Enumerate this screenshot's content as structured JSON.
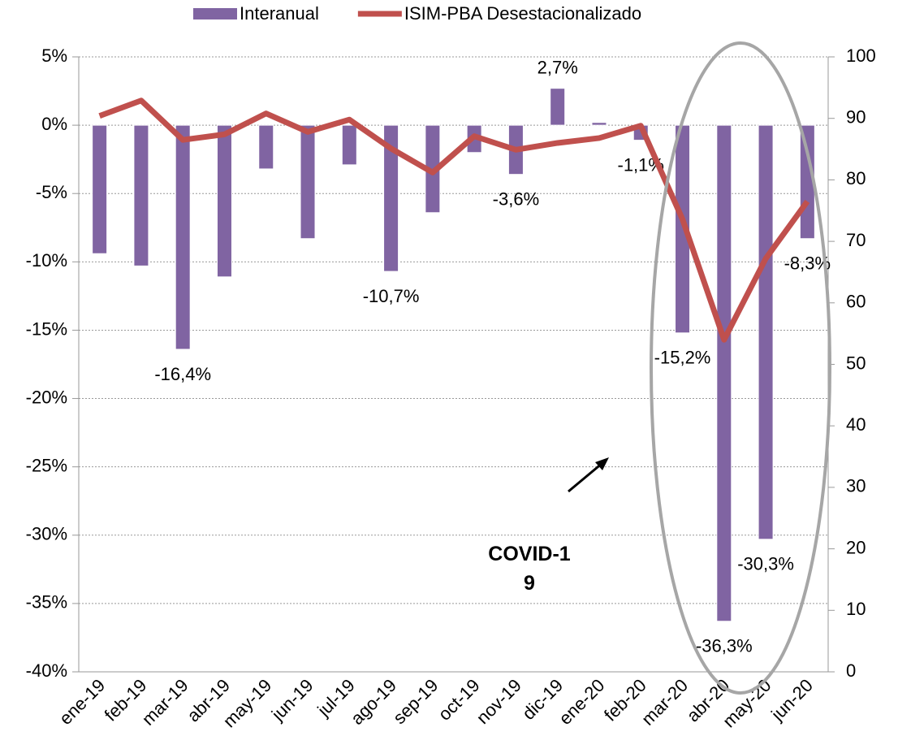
{
  "chart_data": {
    "type": "bar-line",
    "categories": [
      "ene-19",
      "feb-19",
      "mar-19",
      "abr-19",
      "may-19",
      "jun-19",
      "jul-19",
      "ago-19",
      "sep-19",
      "oct-19",
      "nov-19",
      "dic-19",
      "ene-20",
      "feb-20",
      "mar-20",
      "abr-20",
      "may-20",
      "jun-20"
    ],
    "series": [
      {
        "name": "Interanual",
        "type": "bar",
        "color": "#8064a2",
        "axis": "y",
        "values": [
          -9.4,
          -10.3,
          -16.4,
          -11.1,
          -3.2,
          -8.3,
          -2.9,
          -10.7,
          -6.4,
          -2.0,
          -3.6,
          2.7,
          0.2,
          -1.1,
          -15.2,
          -36.3,
          -30.3,
          -8.3
        ],
        "value_labels": [
          null,
          null,
          "-16,4%",
          null,
          null,
          null,
          null,
          "-10,7%",
          null,
          null,
          "-3,6%",
          "2,7%",
          null,
          "-1,1%",
          "-15,2%",
          "-36,3%",
          "-30,3%",
          "-8,3%"
        ]
      },
      {
        "name": "ISIM-PBA Desestacionalizado",
        "type": "line",
        "color": "#c0504d",
        "axis": "y2",
        "values": [
          90.4,
          92.9,
          86.5,
          87.4,
          90.8,
          87.8,
          89.8,
          85.1,
          81.2,
          87.1,
          84.9,
          86.0,
          86.8,
          88.8,
          73.6,
          54.0,
          67.2,
          76.5
        ]
      }
    ],
    "ylim": [
      -40,
      5
    ],
    "yticks": [
      {
        "value": -40,
        "label": "-40%"
      },
      {
        "value": -35,
        "label": "-35%"
      },
      {
        "value": -30,
        "label": "-30%"
      },
      {
        "value": -25,
        "label": "-25%"
      },
      {
        "value": -20,
        "label": "-20%"
      },
      {
        "value": -15,
        "label": "-15%"
      },
      {
        "value": -10,
        "label": "-10%"
      },
      {
        "value": -5,
        "label": "-5%"
      },
      {
        "value": 0,
        "label": "0%"
      },
      {
        "value": 5,
        "label": "5%"
      }
    ],
    "y2lim": [
      0,
      100
    ],
    "y2ticks": [
      0,
      10,
      20,
      30,
      40,
      50,
      60,
      70,
      80,
      90,
      100
    ],
    "grid": true,
    "legend": "top",
    "annotation": "COVID-19"
  }
}
